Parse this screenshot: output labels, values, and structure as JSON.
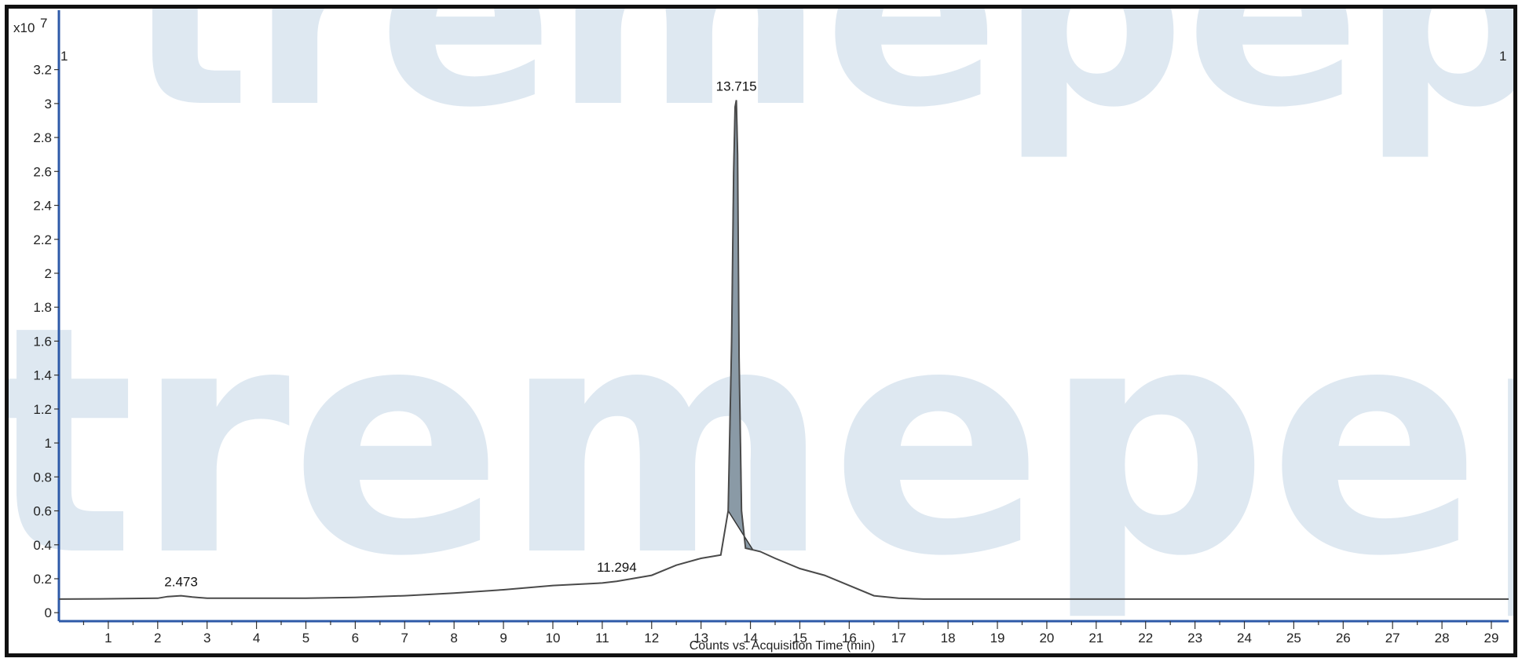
{
  "chart_data": {
    "type": "line",
    "title": "",
    "xlabel": "Counts vs. Acquisition Time (min)",
    "ylabel": "",
    "y_multiplier": "x10",
    "y_exponent": "7",
    "xlim": [
      0,
      29.35
    ],
    "ylim": [
      -0.05,
      3.55
    ],
    "x_ticks": [
      1,
      2,
      3,
      4,
      5,
      6,
      7,
      8,
      9,
      10,
      11,
      12,
      13,
      14,
      15,
      16,
      17,
      18,
      19,
      20,
      21,
      22,
      23,
      24,
      25,
      26,
      27,
      28,
      29
    ],
    "y_ticks": [
      0,
      0.2,
      0.4,
      0.6,
      0.8,
      1,
      1.2,
      1.4,
      1.6,
      1.8,
      2,
      2.2,
      2.4,
      2.6,
      2.8,
      3,
      3.2
    ],
    "y_tick_labels": [
      "0",
      "0.2",
      "0.4",
      "0.6",
      "0.8",
      "1",
      "1.2",
      "1.4",
      "1.6",
      "1.8",
      "2",
      "2.2",
      "2.4",
      "2.6",
      "2.8",
      "3",
      "3.2"
    ],
    "corner_label_left": "1",
    "corner_label_right": "1",
    "series": [
      {
        "x": [
          0,
          1,
          2,
          2.2,
          2.473,
          2.7,
          3,
          4,
          5,
          6,
          7,
          8,
          9,
          10,
          11,
          11.294,
          12,
          12.5,
          13,
          13.4,
          13.55,
          13.62,
          13.66,
          13.69,
          13.715,
          13.74,
          13.77,
          13.82,
          13.9,
          14.05,
          14.2,
          14.5,
          15,
          15.5,
          16,
          16.5,
          17,
          17.5,
          18,
          19,
          20,
          21,
          22,
          23,
          24,
          25,
          26,
          27,
          28,
          29,
          29.35
        ],
        "y": [
          0.08,
          0.082,
          0.085,
          0.095,
          0.1,
          0.092,
          0.085,
          0.085,
          0.085,
          0.09,
          0.1,
          0.115,
          0.135,
          0.16,
          0.175,
          0.185,
          0.22,
          0.28,
          0.32,
          0.34,
          0.6,
          1.6,
          2.6,
          2.98,
          3.02,
          2.7,
          1.5,
          0.6,
          0.38,
          0.37,
          0.36,
          0.32,
          0.26,
          0.22,
          0.16,
          0.1,
          0.085,
          0.08,
          0.08,
          0.08,
          0.08,
          0.08,
          0.08,
          0.08,
          0.08,
          0.08,
          0.08,
          0.08,
          0.08,
          0.08,
          0.08
        ]
      }
    ],
    "peak_area": {
      "x_start": 13.55,
      "x_end": 14.05
    },
    "annotations": [
      {
        "text": "2.473",
        "x": 2.473,
        "y": 0.1
      },
      {
        "text": "11.294",
        "x": 11.294,
        "y": 0.185
      },
      {
        "text": "13.715",
        "x": 13.715,
        "y": 3.02
      }
    ],
    "grid": false,
    "colors": {
      "line": "#4a4a4a",
      "peak_fill": "#8a9aa6",
      "axis": "#2e5aa8",
      "watermark": "#dbe6f0"
    }
  },
  "watermark": {
    "line1": "tremepeptic",
    "line2": "tremepeptic"
  }
}
